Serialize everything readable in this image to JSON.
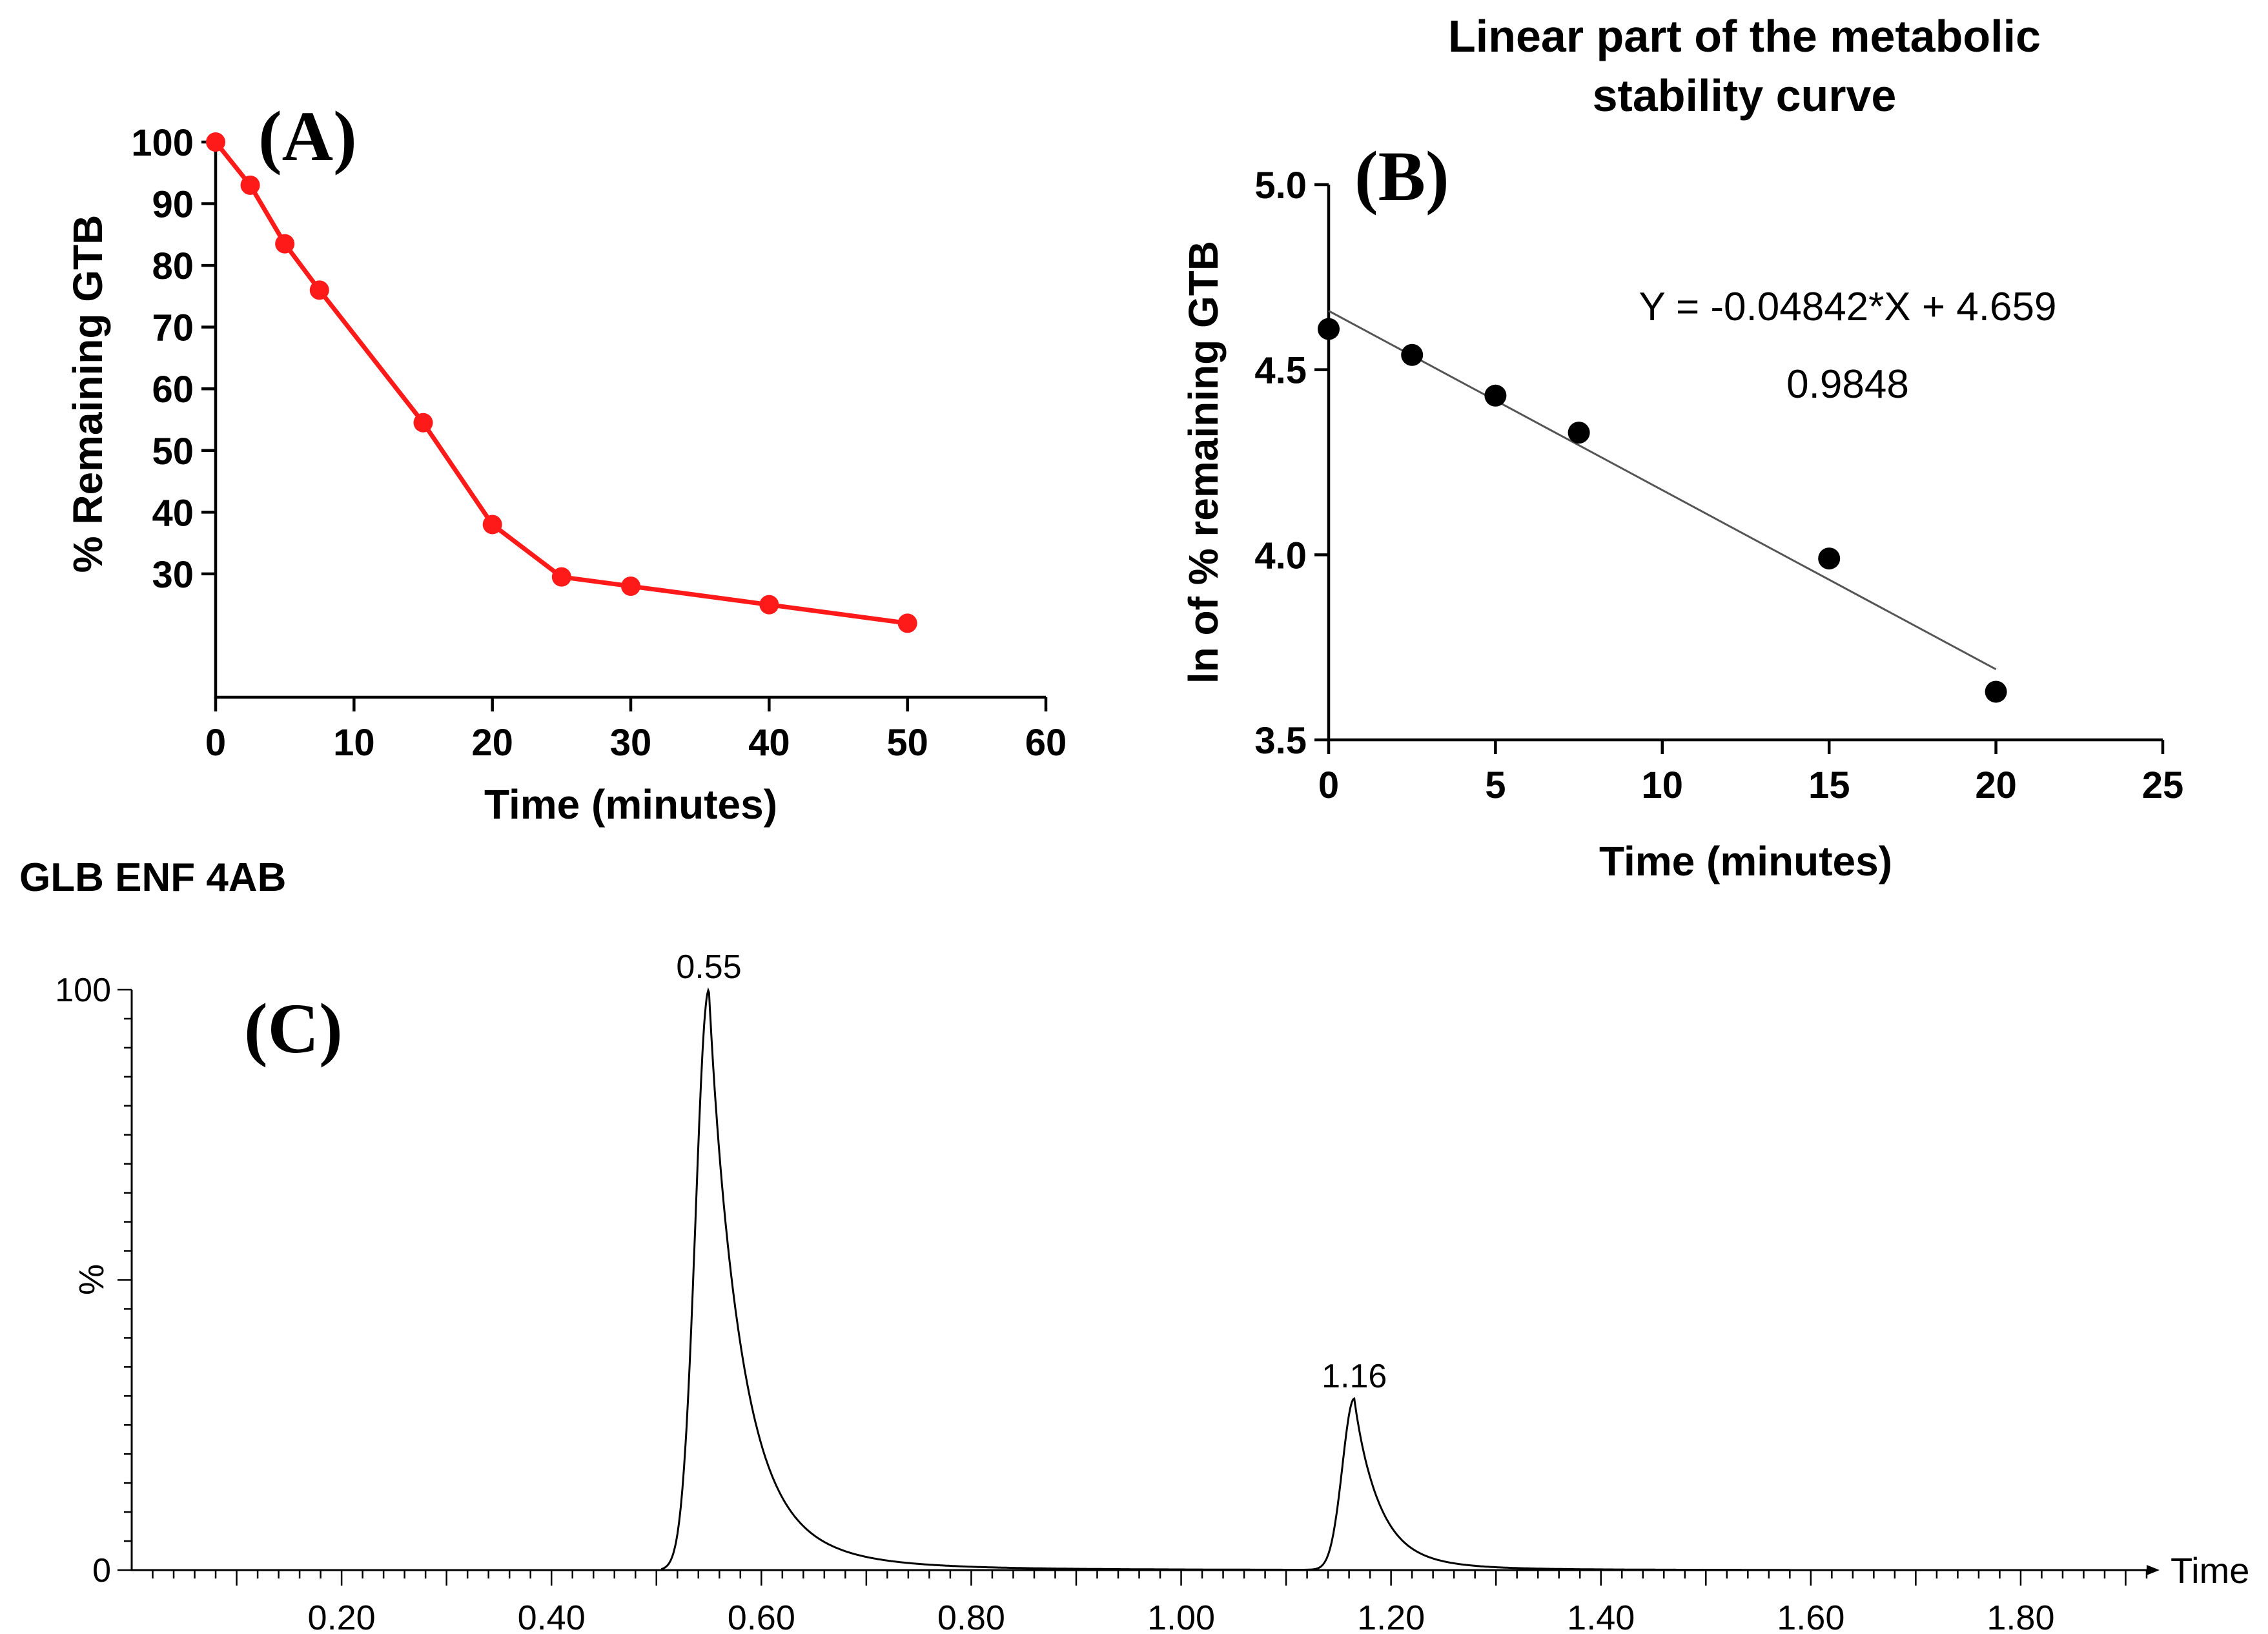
{
  "chart_data": [
    {
      "type": "line",
      "panel_label": "(A)",
      "xlabel": "Time (minutes)",
      "ylabel": "% Remaining GTB",
      "xlim": [
        0,
        60
      ],
      "ylim": [
        10,
        100
      ],
      "x_ticks": [
        "0",
        "10",
        "20",
        "30",
        "40",
        "50",
        "60"
      ],
      "y_ticks": [
        "30",
        "40",
        "50",
        "60",
        "70",
        "80",
        "90",
        "100"
      ],
      "series": [
        {
          "name": "% Remaining GTB",
          "color": "#ff1a1a",
          "x": [
            0,
            2.5,
            5,
            7.5,
            15,
            20,
            25,
            30,
            40,
            50
          ],
          "y": [
            100,
            93,
            83.5,
            76,
            54.5,
            38,
            29.5,
            28,
            25,
            22
          ]
        }
      ]
    },
    {
      "type": "scatter",
      "panel_label": "(B)",
      "title_lines": [
        "Linear part of the metabolic",
        "stability curve"
      ],
      "xlabel": "Time (minutes)",
      "ylabel": "ln of % remaining GTB",
      "xlim": [
        0,
        25
      ],
      "ylim": [
        3.5,
        5.0
      ],
      "x_ticks": [
        "0",
        "5",
        "10",
        "15",
        "20",
        "25"
      ],
      "y_ticks": [
        "3.5",
        "4.0",
        "4.5",
        "5.0"
      ],
      "series": [
        {
          "name": "ln % remaining",
          "color": "#000000",
          "x": [
            0,
            2.5,
            5,
            7.5,
            15,
            20
          ],
          "y": [
            4.61,
            4.54,
            4.43,
            4.33,
            3.99,
            3.63
          ]
        }
      ],
      "fit": {
        "slope": -0.04842,
        "intercept": 4.659,
        "x_range": [
          0,
          20
        ]
      },
      "equation": "Y = -0.04842*X + 4.659",
      "r_squared": "0.9848"
    },
    {
      "type": "line",
      "panel_label": "(C)",
      "header": "GLB ENF 4AB",
      "header_color": "#1a1aff",
      "xlabel": "Time",
      "ylabel": "%",
      "xlim": [
        0,
        1.92
      ],
      "ylim": [
        0,
        100
      ],
      "x_ticks": [
        "0.20",
        "0.40",
        "0.60",
        "0.80",
        "1.00",
        "1.20",
        "1.40",
        "1.60",
        "1.80"
      ],
      "y_ticks": [
        "0",
        "100"
      ],
      "peaks": [
        {
          "label": "0.55",
          "x": 0.55,
          "y": 100
        },
        {
          "label": "1.16",
          "x": 1.165,
          "y": 29.5
        }
      ],
      "trace_range": [
        0.5,
        1.58
      ]
    }
  ]
}
